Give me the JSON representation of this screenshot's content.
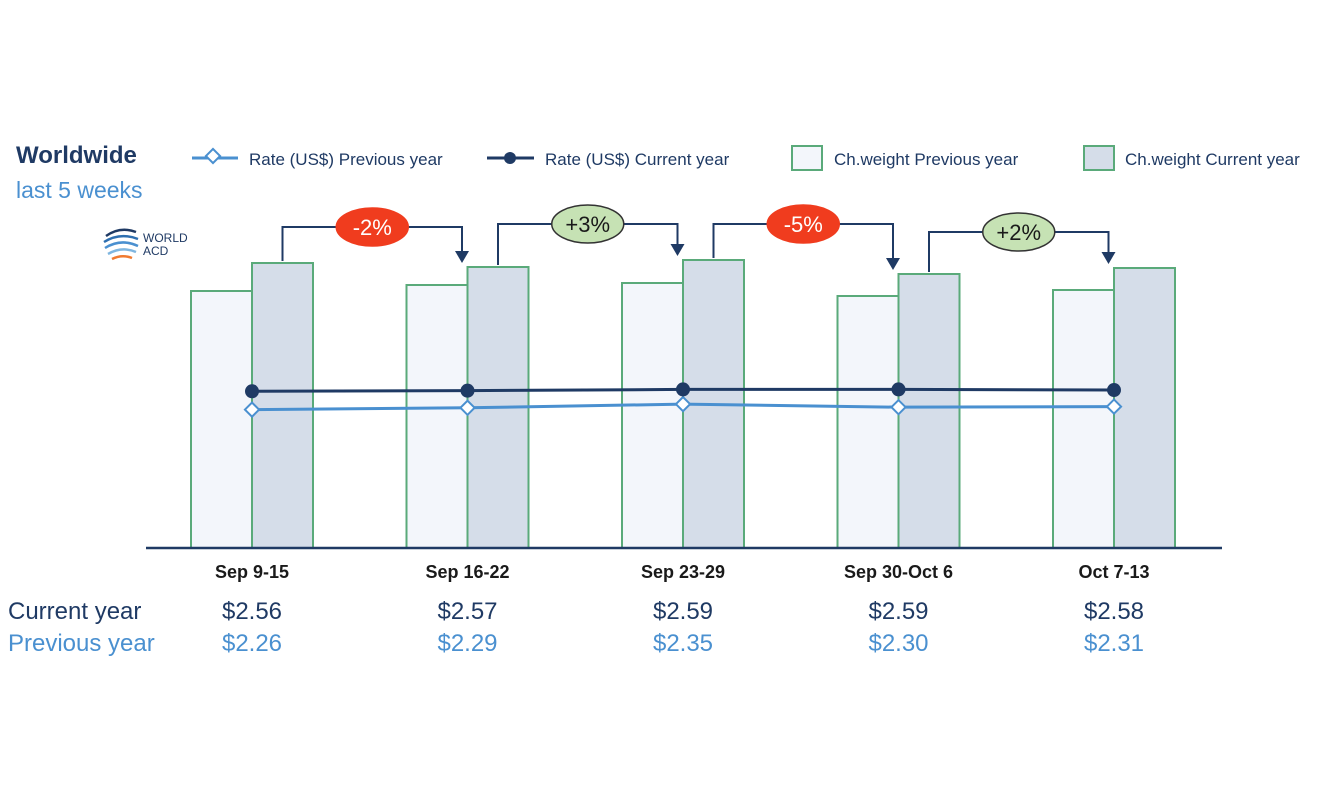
{
  "header": {
    "title": "Worldwide",
    "subtitle": "last 5 weeks",
    "logo_text_line1": "WORLD",
    "logo_text_line2": "ACD"
  },
  "legend": [
    {
      "label": "Rate (US$) Previous year",
      "kind": "line-diamond"
    },
    {
      "label": "Rate (US$) Current year",
      "kind": "line-dot"
    },
    {
      "label": "Ch.weight Previous year",
      "kind": "bar-light"
    },
    {
      "label": "Ch.weight Current year",
      "kind": "bar-dark"
    }
  ],
  "colors": {
    "bar_border": "#5aaa7a",
    "bar_prev_fill": "#f3f6fb",
    "bar_cur_fill": "#d5dde9",
    "line_current": "#1f3a64",
    "line_previous": "#4a90d0",
    "axis": "#1f3a64",
    "badge_negative": "#f03c1e",
    "badge_positive": "#c6e2b4"
  },
  "chart_data": {
    "type": "bar",
    "categories": [
      "Sep 9-15",
      "Sep 16-22",
      "Sep 23-29",
      "Sep 30-Oct 6",
      "Oct 7-13"
    ],
    "series": [
      {
        "name": "Ch.weight Previous year",
        "values": [
          257,
          263,
          265,
          252,
          258
        ]
      },
      {
        "name": "Ch.weight Current year",
        "values": [
          285,
          281,
          288,
          274,
          280
        ]
      },
      {
        "name": "Rate (US$) Previous year",
        "values": [
          2.26,
          2.29,
          2.35,
          2.3,
          2.31
        ]
      },
      {
        "name": "Rate (US$) Current year",
        "values": [
          2.56,
          2.57,
          2.59,
          2.59,
          2.58
        ]
      }
    ],
    "rate_axis_range": [
      0,
      4.9
    ],
    "weight_axis_range": [
      0,
      300
    ],
    "week_changes": [
      "-2%",
      "+3%",
      "-5%",
      "+2%"
    ]
  },
  "table": {
    "current_label": "Current year",
    "previous_label": "Previous year",
    "current_values": [
      "$2.56",
      "$2.57",
      "$2.59",
      "$2.59",
      "$2.58"
    ],
    "previous_values": [
      "$2.26",
      "$2.29",
      "$2.35",
      "$2.30",
      "$2.31"
    ]
  }
}
